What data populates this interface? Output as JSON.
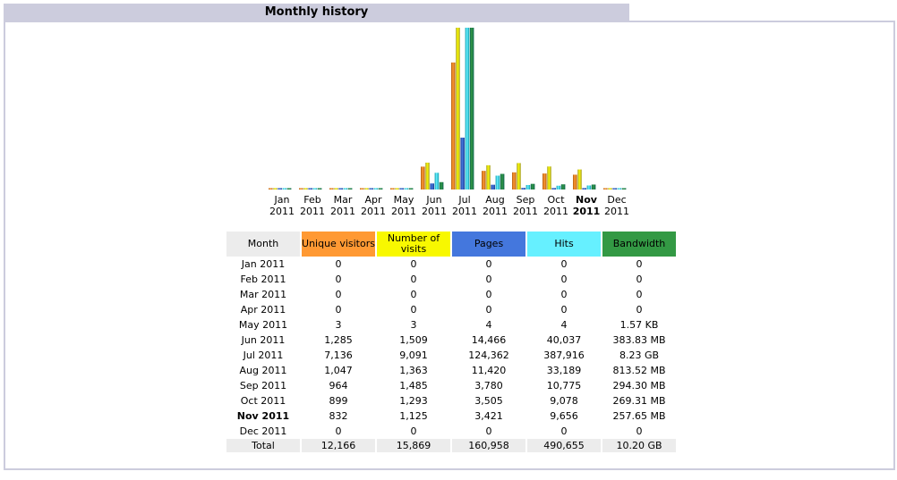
{
  "header": {
    "title": "Monthly history"
  },
  "colors": {
    "unique_visitors": "#ff9933",
    "visits": "#f8f800",
    "pages": "#4477dd",
    "hits": "#66f0ff",
    "bandwidth": "#339944"
  },
  "table": {
    "headers": {
      "month": "Month",
      "unique": "Unique visitors",
      "visits": "Number of visits",
      "pages": "Pages",
      "hits": "Hits",
      "bandwidth": "Bandwidth"
    },
    "rows": [
      [
        "Jan 2011",
        "0",
        "0",
        "0",
        "0",
        "0"
      ],
      [
        "Feb 2011",
        "0",
        "0",
        "0",
        "0",
        "0"
      ],
      [
        "Mar 2011",
        "0",
        "0",
        "0",
        "0",
        "0"
      ],
      [
        "Apr 2011",
        "0",
        "0",
        "0",
        "0",
        "0"
      ],
      [
        "May 2011",
        "3",
        "3",
        "4",
        "4",
        "1.57 KB"
      ],
      [
        "Jun 2011",
        "1,285",
        "1,509",
        "14,466",
        "40,037",
        "383.83 MB"
      ],
      [
        "Jul 2011",
        "7,136",
        "9,091",
        "124,362",
        "387,916",
        "8.23 GB"
      ],
      [
        "Aug 2011",
        "1,047",
        "1,363",
        "11,420",
        "33,189",
        "813.52 MB"
      ],
      [
        "Sep 2011",
        "964",
        "1,485",
        "3,780",
        "10,775",
        "294.30 MB"
      ],
      [
        "Oct 2011",
        "899",
        "1,293",
        "3,505",
        "9,078",
        "269.31 MB"
      ],
      [
        "Nov 2011",
        "832",
        "1,125",
        "3,421",
        "9,656",
        "257.65 MB"
      ],
      [
        "Dec 2011",
        "0",
        "0",
        "0",
        "0",
        "0"
      ]
    ],
    "current_row": 10,
    "total": [
      "Total",
      "12,166",
      "15,869",
      "160,958",
      "490,655",
      "10.20 GB"
    ]
  },
  "chart_data": {
    "type": "bar",
    "categories": [
      "Jan",
      "Feb",
      "Mar",
      "Apr",
      "May",
      "Jun",
      "Jul",
      "Aug",
      "Sep",
      "Oct",
      "Nov",
      "Dec"
    ],
    "category_years": [
      "2011",
      "2011",
      "2011",
      "2011",
      "2011",
      "2011",
      "2011",
      "2011",
      "2011",
      "2011",
      "2011",
      "2011"
    ],
    "highlight_category": "Nov",
    "series": [
      {
        "values": [
          0,
          0,
          0,
          0,
          3,
          1285,
          7136,
          1047,
          964,
          899,
          832,
          0
        ]
      },
      {
        "values": [
          0,
          0,
          0,
          0,
          3,
          1509,
          9091,
          1363,
          1485,
          1293,
          1125,
          0
        ]
      },
      {
        "values": [
          0,
          0,
          0,
          0,
          4,
          14466,
          124362,
          11420,
          3780,
          3505,
          3421,
          0
        ]
      },
      {
        "values": [
          0,
          0,
          0,
          0,
          4,
          40037,
          387916,
          33189,
          10775,
          9078,
          9656,
          0
        ]
      },
      {
        "values": [
          0,
          0,
          0,
          0,
          1.5e-06,
          0.3748,
          8.23,
          0.7945,
          0.2874,
          0.263,
          0.2516,
          0
        ]
      }
    ],
    "series_scale_groups": [
      [
        0,
        1
      ],
      [
        2,
        3
      ],
      [
        4
      ]
    ],
    "title": "",
    "xlabel": "",
    "ylabel": "",
    "grid": false
  }
}
